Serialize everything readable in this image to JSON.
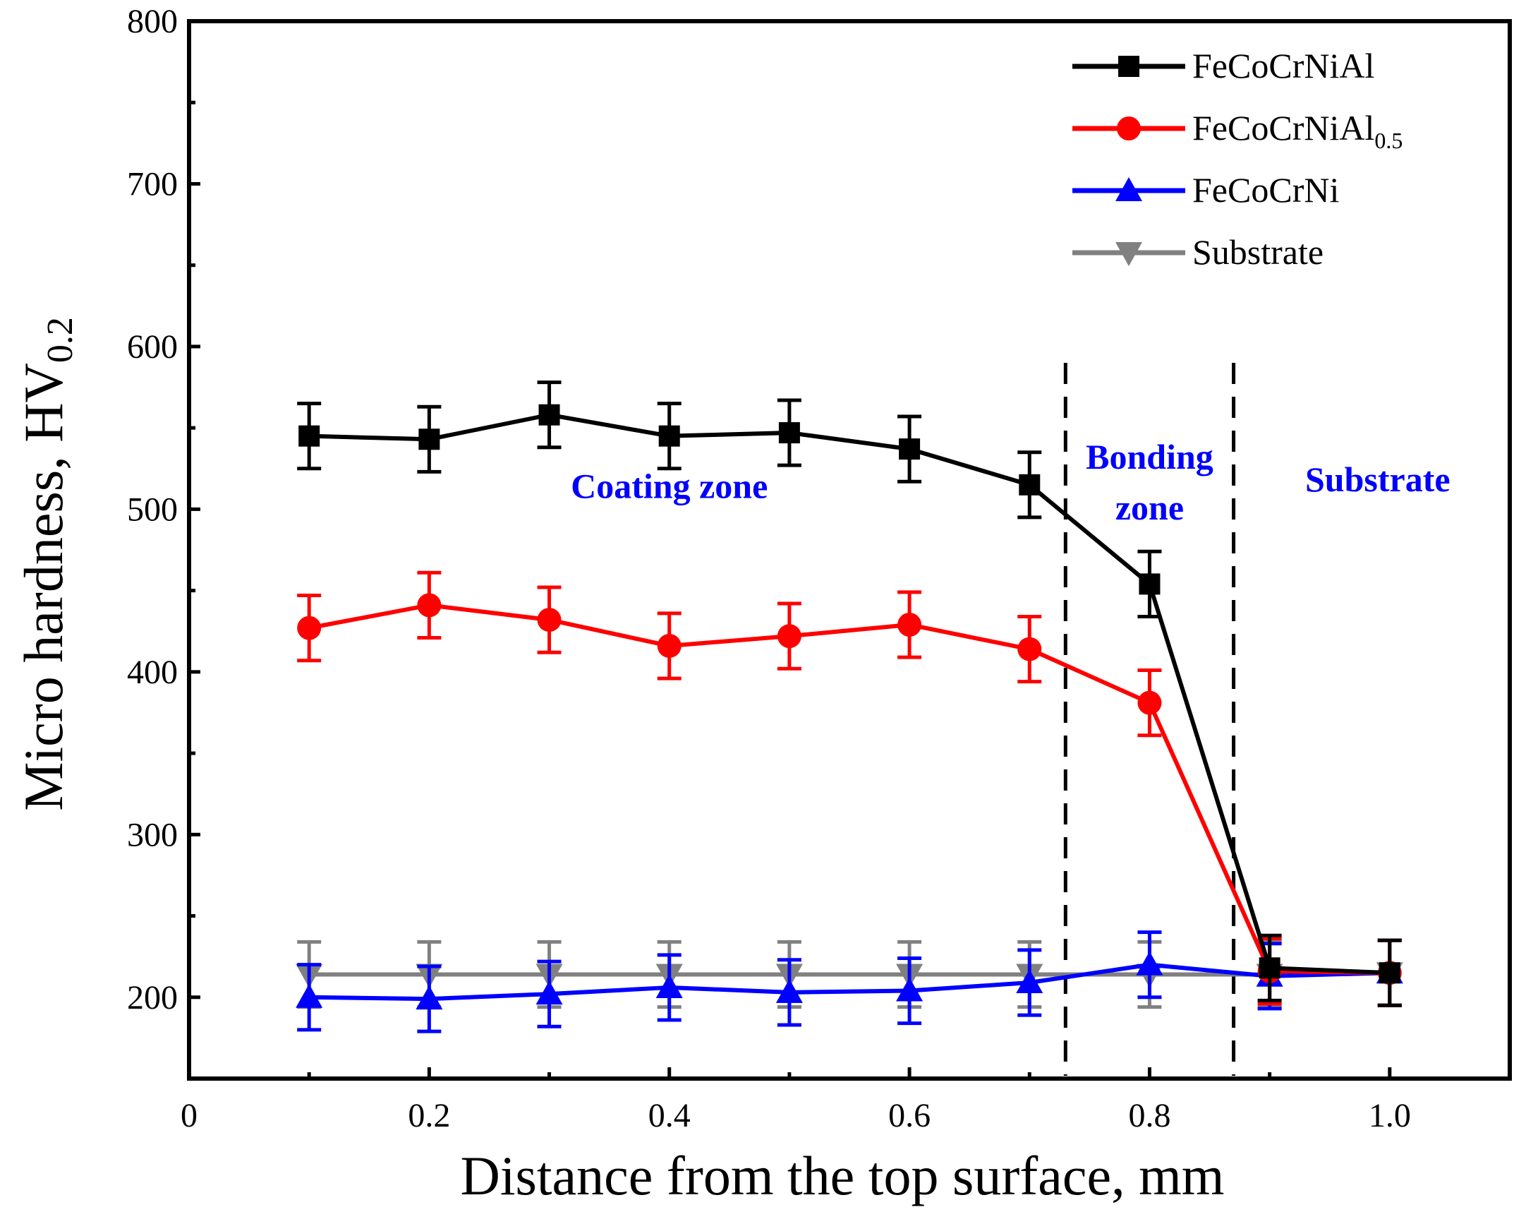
{
  "chart_data": {
    "type": "line",
    "title": "",
    "xlabel": "Distance from the top surface, mm",
    "ylabel": "Micro hardness, HV",
    "ylabel_subscript": "0.2",
    "xlim": [
      0,
      1.1
    ],
    "ylim": [
      150,
      800
    ],
    "xticks": [
      0,
      0.2,
      0.4,
      0.6,
      0.8,
      1.0
    ],
    "xtick_labels": [
      "0",
      "0.2",
      "0.4",
      "0.6",
      "0.8",
      "1.0"
    ],
    "yticks": [
      200,
      300,
      400,
      500,
      600,
      700,
      800
    ],
    "ytick_labels": [
      "200",
      "300",
      "400",
      "500",
      "600",
      "700",
      "800"
    ],
    "legend_position": "top-right",
    "series": [
      {
        "name": "FeCoCrNiAl",
        "name_subscript": "",
        "color": "#000000",
        "marker": "square",
        "x": [
          0.1,
          0.2,
          0.3,
          0.4,
          0.5,
          0.6,
          0.7,
          0.8,
          0.9,
          1.0
        ],
        "y": [
          545,
          543,
          558,
          545,
          547,
          537,
          515,
          454,
          218,
          215
        ],
        "err": [
          20,
          20,
          20,
          20,
          20,
          20,
          20,
          20,
          20,
          20
        ]
      },
      {
        "name": "FeCoCrNiAl",
        "name_subscript": "0.5",
        "color": "#ff0000",
        "marker": "circle",
        "x": [
          0.1,
          0.2,
          0.3,
          0.4,
          0.5,
          0.6,
          0.7,
          0.8,
          0.9,
          1.0
        ],
        "y": [
          427,
          441,
          432,
          416,
          422,
          429,
          414,
          381,
          216,
          215
        ],
        "err": [
          20,
          20,
          20,
          20,
          20,
          20,
          20,
          20,
          20,
          20
        ]
      },
      {
        "name": "FeCoCrNi",
        "name_subscript": "",
        "color": "#0000ff",
        "marker": "triangle-up",
        "x": [
          0.1,
          0.2,
          0.3,
          0.4,
          0.5,
          0.6,
          0.7,
          0.8,
          0.9,
          1.0
        ],
        "y": [
          200,
          199,
          202,
          206,
          203,
          204,
          209,
          220,
          213,
          215
        ],
        "err": [
          20,
          20,
          20,
          20,
          20,
          20,
          20,
          20,
          20,
          20
        ]
      },
      {
        "name": "Substrate",
        "name_subscript": "",
        "color": "#808080",
        "marker": "triangle-down",
        "x": [
          0.1,
          0.2,
          0.3,
          0.4,
          0.5,
          0.6,
          0.7,
          0.8,
          0.9,
          1.0
        ],
        "y": [
          214,
          214,
          214,
          214,
          214,
          214,
          214,
          214,
          214,
          215
        ],
        "err": [
          20,
          20,
          20,
          20,
          20,
          20,
          20,
          20,
          20,
          20
        ]
      }
    ],
    "boundaries": [
      0.73,
      0.87
    ],
    "zones": [
      {
        "lines": [
          "Coating zone"
        ],
        "x": 0.4,
        "y": 507
      },
      {
        "lines": [
          "Bonding",
          "zone"
        ],
        "x": 0.8,
        "y": 525
      },
      {
        "lines": [
          "Substrate"
        ],
        "x": 0.99,
        "y": 511
      }
    ],
    "zone_color": "#0000ff"
  }
}
